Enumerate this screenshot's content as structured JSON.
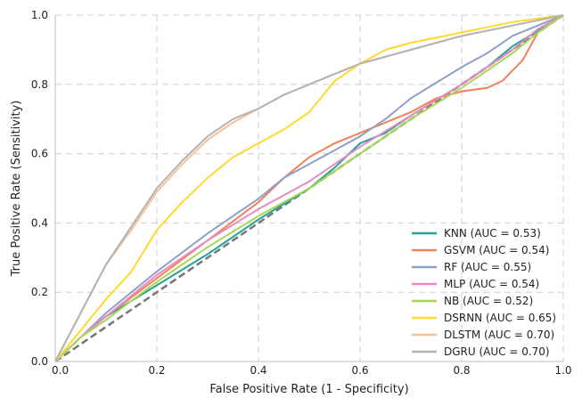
{
  "chart_data": {
    "type": "line",
    "title": "",
    "xlabel": "False Positive Rate (1 - Specificity)",
    "ylabel": "True Positive Rate (Sensitivity)",
    "xlim": [
      0,
      1
    ],
    "ylim": [
      0,
      1
    ],
    "xticks": [
      "0.0",
      "0.2",
      "0.4",
      "0.6",
      "0.8",
      "1.0"
    ],
    "yticks": [
      "0.0",
      "0.2",
      "0.4",
      "0.6",
      "0.8",
      "1.0"
    ],
    "grid": true,
    "legend": "lower-right",
    "reference_line": {
      "x": [
        0,
        1
      ],
      "y": [
        0,
        1
      ],
      "color": "#777777",
      "style": "dashed"
    },
    "series": [
      {
        "name": "KNN (AUC = 0.53)",
        "color": "#2aa198",
        "x": [
          0,
          0.05,
          0.1,
          0.2,
          0.3,
          0.4,
          0.5,
          0.55,
          0.6,
          0.65,
          0.7,
          0.8,
          0.85,
          0.9,
          1.0
        ],
        "y": [
          0,
          0.07,
          0.13,
          0.22,
          0.31,
          0.41,
          0.5,
          0.56,
          0.63,
          0.66,
          0.71,
          0.8,
          0.85,
          0.91,
          1.0
        ]
      },
      {
        "name": "GSVM (AUC = 0.54)",
        "color": "#f4815a",
        "x": [
          0,
          0.05,
          0.1,
          0.2,
          0.3,
          0.4,
          0.45,
          0.5,
          0.55,
          0.6,
          0.65,
          0.7,
          0.75,
          0.8,
          0.85,
          0.88,
          0.92,
          0.95,
          1.0
        ],
        "y": [
          0,
          0.07,
          0.13,
          0.24,
          0.35,
          0.46,
          0.53,
          0.59,
          0.63,
          0.66,
          0.69,
          0.72,
          0.76,
          0.78,
          0.79,
          0.81,
          0.87,
          0.95,
          1.0
        ]
      },
      {
        "name": "RF (AUC = 0.55)",
        "color": "#8ea0c8",
        "x": [
          0,
          0.05,
          0.1,
          0.2,
          0.3,
          0.4,
          0.45,
          0.5,
          0.55,
          0.6,
          0.65,
          0.7,
          0.8,
          0.85,
          0.9,
          0.95,
          1.0
        ],
        "y": [
          0,
          0.07,
          0.14,
          0.26,
          0.37,
          0.47,
          0.53,
          0.57,
          0.61,
          0.65,
          0.7,
          0.76,
          0.85,
          0.89,
          0.94,
          0.97,
          1.0
        ]
      },
      {
        "name": "MLP (AUC = 0.54)",
        "color": "#e78ac3",
        "x": [
          0,
          0.05,
          0.1,
          0.2,
          0.3,
          0.4,
          0.5,
          0.6,
          0.7,
          0.8,
          0.9,
          0.95,
          1.0
        ],
        "y": [
          0,
          0.07,
          0.13,
          0.25,
          0.35,
          0.44,
          0.52,
          0.62,
          0.71,
          0.8,
          0.9,
          0.96,
          1.0
        ]
      },
      {
        "name": "NB (AUC = 0.52)",
        "color": "#a6d854",
        "x": [
          0,
          0.05,
          0.1,
          0.2,
          0.3,
          0.4,
          0.5,
          0.6,
          0.7,
          0.8,
          0.9,
          0.95,
          1.0
        ],
        "y": [
          0,
          0.07,
          0.12,
          0.23,
          0.33,
          0.42,
          0.5,
          0.6,
          0.7,
          0.79,
          0.89,
          0.95,
          1.0
        ]
      },
      {
        "name": "DSRNN (AUC = 0.65)",
        "color": "#ffd92f",
        "x": [
          0,
          0.05,
          0.1,
          0.15,
          0.2,
          0.25,
          0.3,
          0.35,
          0.4,
          0.45,
          0.5,
          0.55,
          0.6,
          0.65,
          0.7,
          0.8,
          0.9,
          1.0
        ],
        "y": [
          0,
          0.09,
          0.18,
          0.26,
          0.38,
          0.46,
          0.53,
          0.59,
          0.63,
          0.67,
          0.72,
          0.81,
          0.86,
          0.9,
          0.92,
          0.95,
          0.98,
          1.0
        ]
      },
      {
        "name": "DLSTM (AUC = 0.70)",
        "color": "#f5c29a",
        "x": [
          0,
          0.05,
          0.1,
          0.15,
          0.2,
          0.25,
          0.3,
          0.35,
          0.4,
          0.45,
          0.5,
          0.55,
          0.6,
          0.7,
          0.8,
          0.9,
          1.0
        ],
        "y": [
          0,
          0.14,
          0.28,
          0.38,
          0.49,
          0.57,
          0.64,
          0.69,
          0.73,
          0.77,
          0.8,
          0.83,
          0.86,
          0.9,
          0.94,
          0.97,
          1.0
        ]
      },
      {
        "name": "DGRU (AUC = 0.70)",
        "color": "#b3b3b3",
        "x": [
          0,
          0.05,
          0.1,
          0.15,
          0.2,
          0.25,
          0.3,
          0.35,
          0.4,
          0.45,
          0.5,
          0.55,
          0.6,
          0.7,
          0.8,
          0.9,
          1.0
        ],
        "y": [
          0,
          0.14,
          0.28,
          0.39,
          0.5,
          0.58,
          0.65,
          0.7,
          0.73,
          0.77,
          0.8,
          0.83,
          0.86,
          0.9,
          0.94,
          0.97,
          1.0
        ]
      }
    ]
  }
}
